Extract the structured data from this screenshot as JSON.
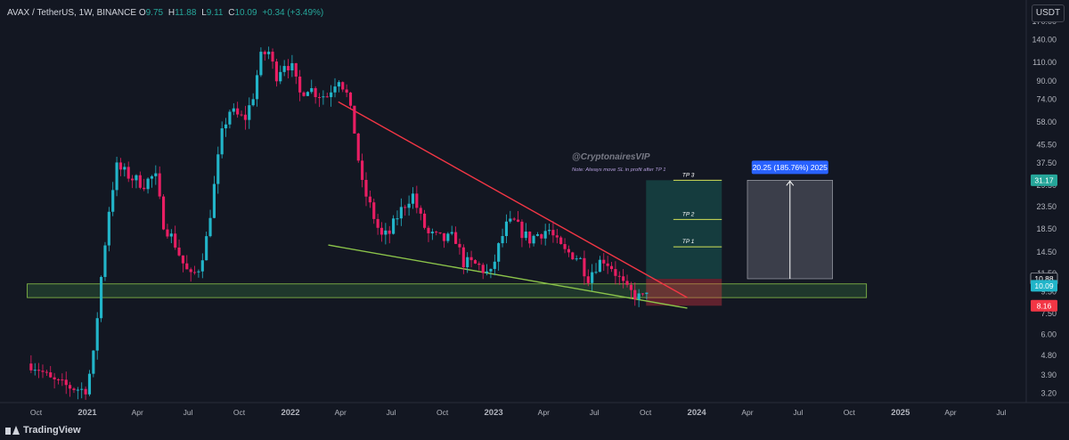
{
  "header": {
    "symbol": "AVAX / TetherUS, 1W, BINANCE",
    "o_label": "O",
    "o": "9.75",
    "h_label": "H",
    "h": "11.88",
    "l_label": "L",
    "l": "9.11",
    "c_label": "C",
    "c": "10.09",
    "change": "+0.34 (+3.49%)"
  },
  "currency_button": "USDT",
  "branding": "TradingView",
  "chart_data": {
    "type": "candlestick",
    "ylim": [
      2.9,
      170
    ],
    "log_scale": true,
    "grid": false,
    "price_ticks": [
      170.0,
      140.0,
      110.0,
      90.0,
      74.0,
      58.0,
      45.5,
      37.5,
      29.5,
      23.5,
      18.5,
      14.5,
      11.5,
      9.5,
      7.5,
      6.0,
      4.8,
      3.9,
      3.2
    ],
    "time_ticks": [
      "Oct",
      "2021",
      "Apr",
      "Jul",
      "Oct",
      "2022",
      "Apr",
      "Jul",
      "Oct",
      "2023",
      "Apr",
      "Jul",
      "Oct",
      "2024",
      "Apr",
      "Jul",
      "Oct",
      "2025",
      "Apr",
      "Jul"
    ],
    "time_tick_dates": [
      "2020-10-01",
      "2021-01-01",
      "2021-04-01",
      "2021-07-01",
      "2021-10-01",
      "2022-01-01",
      "2022-04-01",
      "2022-07-01",
      "2022-10-01",
      "2023-01-01",
      "2023-04-01",
      "2023-07-01",
      "2023-10-01",
      "2024-01-01",
      "2024-04-01",
      "2024-07-01",
      "2024-10-01",
      "2025-01-01",
      "2025-04-01",
      "2025-07-01"
    ],
    "xlim": [
      "2020-08-10",
      "2025-08-15"
    ],
    "price_path": [
      [
        "2020-09-22",
        4.4
      ],
      [
        "2020-10-05",
        4.2
      ],
      [
        "2020-10-26",
        3.7
      ],
      [
        "2020-11-16",
        3.5
      ],
      [
        "2020-12-07",
        3.4
      ],
      [
        "2020-12-28",
        3.3
      ],
      [
        "2021-01-11",
        4.5
      ],
      [
        "2021-01-25",
        10.5
      ],
      [
        "2021-02-08",
        22
      ],
      [
        "2021-02-22",
        36
      ],
      [
        "2021-03-08",
        34
      ],
      [
        "2021-03-22",
        32
      ],
      [
        "2021-04-12",
        30
      ],
      [
        "2021-05-03",
        33
      ],
      [
        "2021-05-17",
        20
      ],
      [
        "2021-06-07",
        16
      ],
      [
        "2021-06-21",
        13
      ],
      [
        "2021-07-05",
        11
      ],
      [
        "2021-07-19",
        12
      ],
      [
        "2021-08-02",
        16
      ],
      [
        "2021-08-16",
        28
      ],
      [
        "2021-08-30",
        50
      ],
      [
        "2021-09-13",
        66
      ],
      [
        "2021-09-27",
        62
      ],
      [
        "2021-10-11",
        60
      ],
      [
        "2021-10-25",
        75
      ],
      [
        "2021-11-08",
        115
      ],
      [
        "2021-11-22",
        125
      ],
      [
        "2021-12-06",
        95
      ],
      [
        "2021-12-20",
        110
      ],
      [
        "2022-01-03",
        105
      ],
      [
        "2022-01-17",
        78
      ],
      [
        "2022-01-31",
        85
      ],
      [
        "2022-02-14",
        80
      ],
      [
        "2022-03-07",
        76
      ],
      [
        "2022-03-28",
        95
      ],
      [
        "2022-04-11",
        80
      ],
      [
        "2022-04-25",
        55
      ],
      [
        "2022-05-09",
        30
      ],
      [
        "2022-05-23",
        24
      ],
      [
        "2022-06-13",
        17
      ],
      [
        "2022-06-27",
        17.5
      ],
      [
        "2022-07-11",
        21
      ],
      [
        "2022-07-25",
        24
      ],
      [
        "2022-08-08",
        27
      ],
      [
        "2022-08-22",
        21
      ],
      [
        "2022-09-05",
        17.5
      ],
      [
        "2022-09-19",
        17
      ],
      [
        "2022-10-03",
        16.5
      ],
      [
        "2022-10-24",
        17
      ],
      [
        "2022-11-07",
        13
      ],
      [
        "2022-11-21",
        12.8
      ],
      [
        "2022-12-05",
        12.5
      ],
      [
        "2022-12-26",
        11.2
      ],
      [
        "2023-01-09",
        15
      ],
      [
        "2023-01-23",
        19
      ],
      [
        "2023-02-06",
        20
      ],
      [
        "2023-02-20",
        18
      ],
      [
        "2023-03-06",
        16.5
      ],
      [
        "2023-03-20",
        17.5
      ],
      [
        "2023-04-10",
        18.5
      ],
      [
        "2023-04-24",
        16
      ],
      [
        "2023-05-08",
        14.5
      ],
      [
        "2023-05-22",
        14.2
      ],
      [
        "2023-06-05",
        13.5
      ],
      [
        "2023-06-19",
        11
      ],
      [
        "2023-07-03",
        12.5
      ],
      [
        "2023-07-17",
        13.5
      ],
      [
        "2023-07-31",
        12.5
      ],
      [
        "2023-08-14",
        11
      ],
      [
        "2023-08-28",
        9.6
      ],
      [
        "2023-09-11",
        9.2
      ],
      [
        "2023-09-25",
        8.7
      ],
      [
        "2023-10-02",
        9.75
      ],
      [
        "2023-10-09",
        10.09
      ]
    ],
    "annotations": {
      "watermark": "@CryptonairesVIP",
      "note": "Note: Always move SL in profit after TP 1",
      "measure_label": "20.25 (185.76%) 2025",
      "targets": [
        {
          "label": "TP 3",
          "price": 31.17
        },
        {
          "label": "TP 2",
          "price": 20.5
        },
        {
          "label": "TP 1",
          "price": 15.3
        }
      ],
      "entry": 10.88,
      "stop": 8.16,
      "support_zone": [
        8.9,
        10.3
      ],
      "resistance_line": {
        "from": [
          "2022-03-28",
          72.0
        ],
        "to": [
          "2023-12-15",
          8.9
        ]
      },
      "support_line": {
        "from": [
          "2022-03-10",
          15.6
        ],
        "to": [
          "2023-12-15",
          7.95
        ]
      }
    },
    "axis_badges": [
      {
        "text": "31.17",
        "price": 31.17,
        "color": "#26a69a"
      },
      {
        "text": "10.88",
        "price": 10.88,
        "color": "#131722"
      },
      {
        "text": "10.09",
        "price": 10.09,
        "color": "#22b5c9"
      },
      {
        "text": "8.16",
        "price": 8.16,
        "color": "#f23645"
      }
    ],
    "colors": {
      "up": "#22b5c9",
      "down": "#e91e63",
      "resistance": "#f23645",
      "support": "#8bc34a",
      "profit": "#1b8c7a",
      "loss": "#f23645",
      "measure": "#2962ff"
    }
  }
}
